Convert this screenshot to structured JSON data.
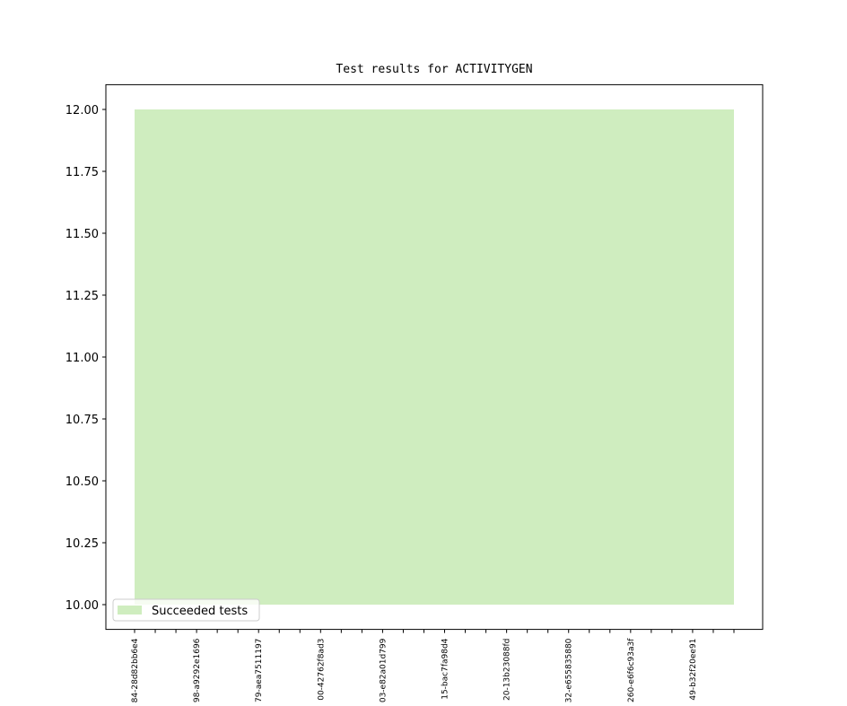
{
  "chart_data": {
    "type": "area",
    "title": "Test results for ACTIVITYGEN",
    "categories": [
      "84-28d82bb6e4",
      null,
      null,
      "98-a9292e1696",
      null,
      null,
      "79-aea7511197",
      null,
      null,
      "00-42762f8ad3",
      null,
      null,
      "03-e82a01d799",
      null,
      null,
      "15-bac7fa98d4",
      null,
      null,
      "20-13b23088fd",
      null,
      null,
      "32-e655835880",
      null,
      null,
      "260-e6f6c93a3f",
      null,
      null,
      "49-b32f20ee91",
      null,
      null
    ],
    "series": [
      {
        "name": "Succeeded tests",
        "color": "#cfedbf",
        "low": [
          10,
          10,
          10,
          10,
          10,
          10,
          10,
          10,
          10,
          10,
          10,
          10,
          10,
          10,
          10,
          10,
          10,
          10,
          10,
          10,
          10,
          10,
          10,
          10,
          10,
          10,
          10,
          10,
          10,
          10
        ],
        "values": [
          12,
          12,
          12,
          12,
          12,
          12,
          12,
          12,
          12,
          12,
          12,
          12,
          12,
          12,
          12,
          12,
          12,
          12,
          12,
          12,
          12,
          12,
          12,
          12,
          12,
          12,
          12,
          12,
          12,
          12
        ]
      }
    ],
    "ylim": [
      9.9,
      12.1
    ],
    "yticks": [
      {
        "value": 10,
        "label": "10.00"
      },
      {
        "value": 10.25,
        "label": "10.25"
      },
      {
        "value": 10.5,
        "label": "10.50"
      },
      {
        "value": 10.75,
        "label": "10.75"
      },
      {
        "value": 11,
        "label": "11.00"
      },
      {
        "value": 11.25,
        "label": "11.25"
      },
      {
        "value": 11.5,
        "label": "11.50"
      },
      {
        "value": 11.75,
        "label": "11.75"
      },
      {
        "value": 12,
        "label": "12.00"
      }
    ],
    "legend": "lower left",
    "grid": false
  }
}
